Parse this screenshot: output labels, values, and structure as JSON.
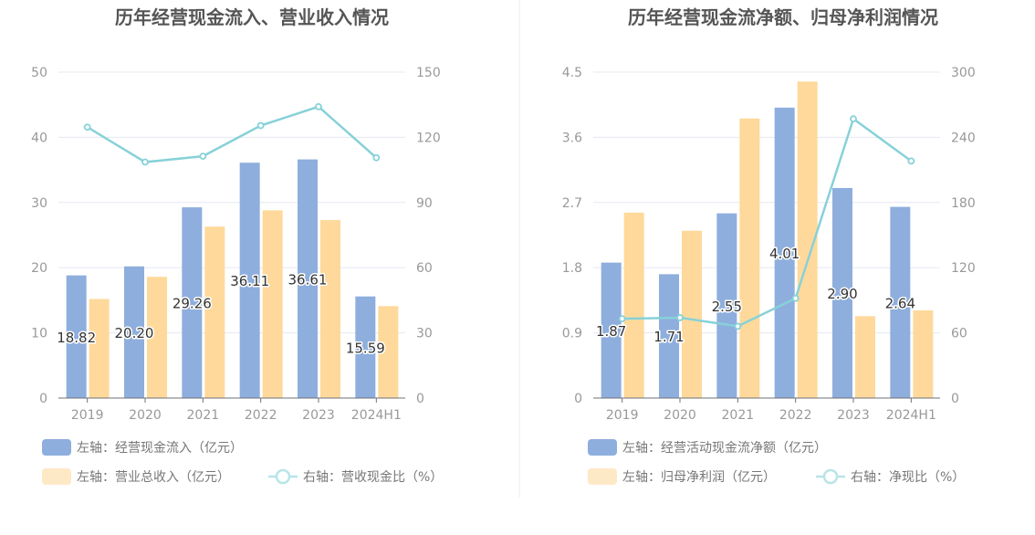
{
  "colors": {
    "bar_primary": "#8eaedd",
    "bar_secondary": "#fed99b",
    "line": "#87d1d8",
    "axis_text": "#999999",
    "title_text": "#555555",
    "grid": "#e6e8f2",
    "divider": "#eeeeee",
    "label_text": "#333333",
    "legend_text": "#777777"
  },
  "chart_data": [
    {
      "type": "bar",
      "title": "历年经营现金流入、营业收入情况",
      "categories": [
        "2019",
        "2020",
        "2021",
        "2022",
        "2023",
        "2024H1"
      ],
      "y_left": {
        "ticks": [
          "0",
          "10",
          "20",
          "30",
          "40",
          "50"
        ],
        "ylim": [
          0,
          50
        ]
      },
      "y_right": {
        "ticks": [
          "0",
          "30",
          "60",
          "90",
          "120",
          "150"
        ],
        "ylim": [
          0,
          150
        ]
      },
      "series": [
        {
          "name": "左轴：经营现金流入（亿元）",
          "axis": "left",
          "color": "#8eaedd",
          "values": [
            18.82,
            20.2,
            29.26,
            36.11,
            36.61,
            15.59
          ],
          "labels": [
            "18.82",
            "20.20",
            "29.26",
            "36.11",
            "36.61",
            "15.59"
          ]
        },
        {
          "name": "左轴：营业总收入（亿元）",
          "axis": "left",
          "color": "#fed99b",
          "values": [
            15.2,
            18.6,
            26.3,
            28.8,
            27.3,
            14.1
          ]
        },
        {
          "name": "右轴：营收现金比（%）",
          "axis": "right",
          "type": "line",
          "color": "#87d1d8",
          "values": [
            124.7,
            108.6,
            111.3,
            125.4,
            134.1,
            110.6
          ]
        }
      ]
    },
    {
      "type": "bar",
      "title": "历年经营现金流净额、归母净利润情况",
      "categories": [
        "2019",
        "2020",
        "2021",
        "2022",
        "2023",
        "2024H1"
      ],
      "y_left": {
        "ticks": [
          "0",
          "0.9",
          "1.8",
          "2.7",
          "3.6",
          "4.5"
        ],
        "ylim": [
          0,
          4.5
        ]
      },
      "y_right": {
        "ticks": [
          "0",
          "60",
          "120",
          "180",
          "240",
          "300"
        ],
        "ylim": [
          0,
          300
        ]
      },
      "series": [
        {
          "name": "左轴：经营活动现金流净额（亿元）",
          "axis": "left",
          "color": "#8eaedd",
          "values": [
            1.87,
            1.71,
            2.55,
            4.01,
            2.9,
            2.64
          ],
          "labels": [
            "1.87",
            "1.71",
            "2.55",
            "4.01",
            "2.90",
            "2.64"
          ]
        },
        {
          "name": "左轴：归母净利润（亿元）",
          "axis": "left",
          "color": "#fed99b",
          "values": [
            2.56,
            2.31,
            3.86,
            4.37,
            1.13,
            1.21
          ]
        },
        {
          "name": "右轴：净现比（%）",
          "axis": "right",
          "type": "line",
          "color": "#87d1d8",
          "values": [
            73.0,
            74.0,
            66.1,
            91.8,
            257.0,
            218.2
          ]
        }
      ]
    }
  ]
}
